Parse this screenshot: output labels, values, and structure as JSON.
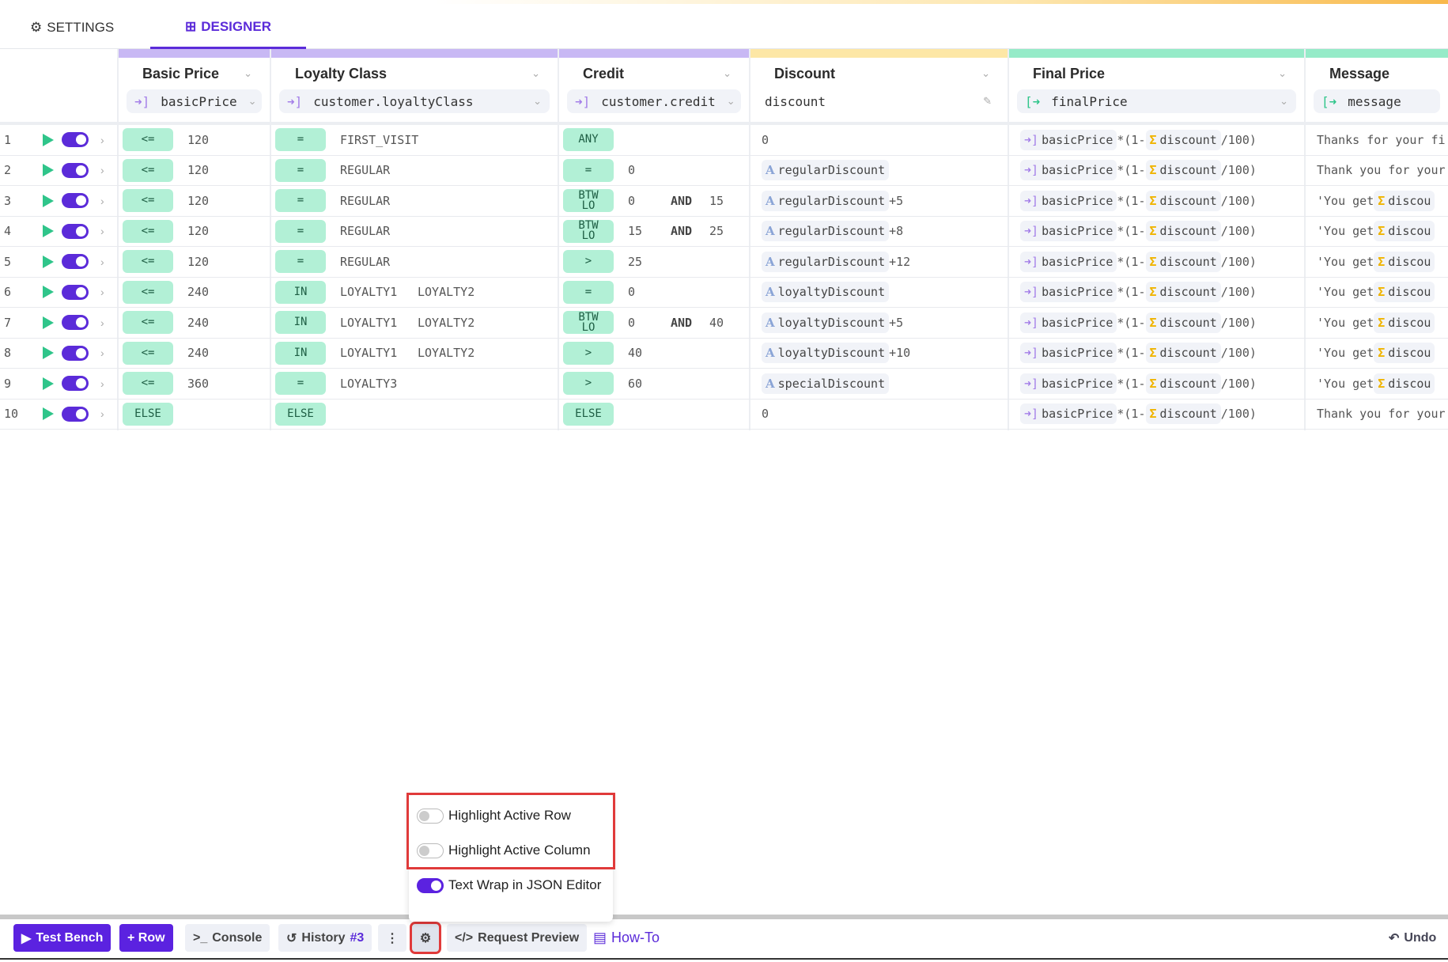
{
  "tabs": {
    "settings": "SETTINGS",
    "designer": "DESIGNER"
  },
  "columns": [
    {
      "title": "Basic Price",
      "field": "basicPrice",
      "kind": "input",
      "color": "#c8b8f4"
    },
    {
      "title": "Loyalty Class",
      "field": "customer.loyaltyClass",
      "kind": "input",
      "color": "#c8b8f4"
    },
    {
      "title": "Credit",
      "field": "customer.credit",
      "kind": "input",
      "color": "#c8b8f4"
    },
    {
      "title": "Discount",
      "field": "discount",
      "kind": "intermediate",
      "color": "#fde7a6"
    },
    {
      "title": "Final Price",
      "field": "finalPrice",
      "kind": "output",
      "color": "#95ebc8"
    },
    {
      "title": "Message",
      "field": "message",
      "kind": "output",
      "color": "#95ebc8"
    }
  ],
  "rows": [
    {
      "n": "1",
      "basic": [
        "<=",
        "120"
      ],
      "loyalty": [
        "=",
        "FIRST_VISIT"
      ],
      "credit": [
        "ANY"
      ],
      "discount": {
        "const": "0"
      },
      "message": {
        "text": "Thanks for your fi"
      }
    },
    {
      "n": "2",
      "basic": [
        "<=",
        "120"
      ],
      "loyalty": [
        "=",
        "REGULAR"
      ],
      "credit": [
        "=",
        "0"
      ],
      "discount": {
        "ref": "regularDiscount",
        "suffix": ""
      },
      "message": {
        "text": "Thank you for your"
      }
    },
    {
      "n": "3",
      "basic": [
        "<=",
        "120"
      ],
      "loyalty": [
        "=",
        "REGULAR"
      ],
      "credit": [
        "BTW LO",
        "0",
        "AND",
        "15"
      ],
      "discount": {
        "ref": "regularDiscount",
        "suffix": "+5"
      },
      "message": {
        "text": "'You get ",
        "ref": "discou"
      }
    },
    {
      "n": "4",
      "basic": [
        "<=",
        "120"
      ],
      "loyalty": [
        "=",
        "REGULAR"
      ],
      "credit": [
        "BTW LO",
        "15",
        "AND",
        "25"
      ],
      "discount": {
        "ref": "regularDiscount",
        "suffix": "+8"
      },
      "message": {
        "text": "'You get ",
        "ref": "discou"
      }
    },
    {
      "n": "5",
      "basic": [
        "<=",
        "120"
      ],
      "loyalty": [
        "=",
        "REGULAR"
      ],
      "credit": [
        ">",
        "25"
      ],
      "discount": {
        "ref": "regularDiscount",
        "suffix": "+12"
      },
      "message": {
        "text": "'You get ",
        "ref": "discou"
      }
    },
    {
      "n": "6",
      "basic": [
        "<=",
        "240"
      ],
      "loyalty": [
        "IN",
        "LOYALTY1",
        "LOYALTY2"
      ],
      "credit": [
        "=",
        "0"
      ],
      "discount": {
        "ref": "loyaltyDiscount",
        "suffix": ""
      },
      "message": {
        "text": "'You get ",
        "ref": "discou"
      }
    },
    {
      "n": "7",
      "basic": [
        "<=",
        "240"
      ],
      "loyalty": [
        "IN",
        "LOYALTY1",
        "LOYALTY2"
      ],
      "credit": [
        "BTW LO",
        "0",
        "AND",
        "40"
      ],
      "discount": {
        "ref": "loyaltyDiscount",
        "suffix": "+5"
      },
      "message": {
        "text": "'You get ",
        "ref": "discou"
      }
    },
    {
      "n": "8",
      "basic": [
        "<=",
        "240"
      ],
      "loyalty": [
        "IN",
        "LOYALTY1",
        "LOYALTY2"
      ],
      "credit": [
        ">",
        "40"
      ],
      "discount": {
        "ref": "loyaltyDiscount",
        "suffix": "+10"
      },
      "message": {
        "text": "'You get ",
        "ref": "discou"
      }
    },
    {
      "n": "9",
      "basic": [
        "<=",
        "360"
      ],
      "loyalty": [
        "=",
        "LOYALTY3"
      ],
      "credit": [
        ">",
        "60"
      ],
      "discount": {
        "ref": "specialDiscount",
        "suffix": ""
      },
      "message": {
        "text": "'You get ",
        "ref": "discou"
      }
    },
    {
      "n": "10",
      "basic": [
        "ELSE"
      ],
      "loyalty": [
        "ELSE"
      ],
      "credit": [
        "ELSE"
      ],
      "discount": {
        "const": "0"
      },
      "message": {
        "text": "Thank you for your"
      }
    }
  ],
  "final_formula": {
    "ref1": "basicPrice",
    "mid": "*(1-",
    "ref2": "discount",
    "end": "/100)"
  },
  "popup": {
    "items": [
      {
        "label": "Highlight Active Row",
        "on": false
      },
      {
        "label": "Highlight Active Column",
        "on": false
      },
      {
        "label": "Text Wrap in JSON Editor",
        "on": true
      }
    ]
  },
  "bottombar": {
    "test_bench": "Test Bench",
    "add_row": "+ Row",
    "console": "Console",
    "history": "History",
    "history_count": "#3",
    "request_preview": "Request Preview",
    "how_to": "How-To",
    "undo": "Undo"
  },
  "colors": {
    "accent": "#5b22e0",
    "condition": "#b2f0d6",
    "highlight": "#e03a3a"
  }
}
